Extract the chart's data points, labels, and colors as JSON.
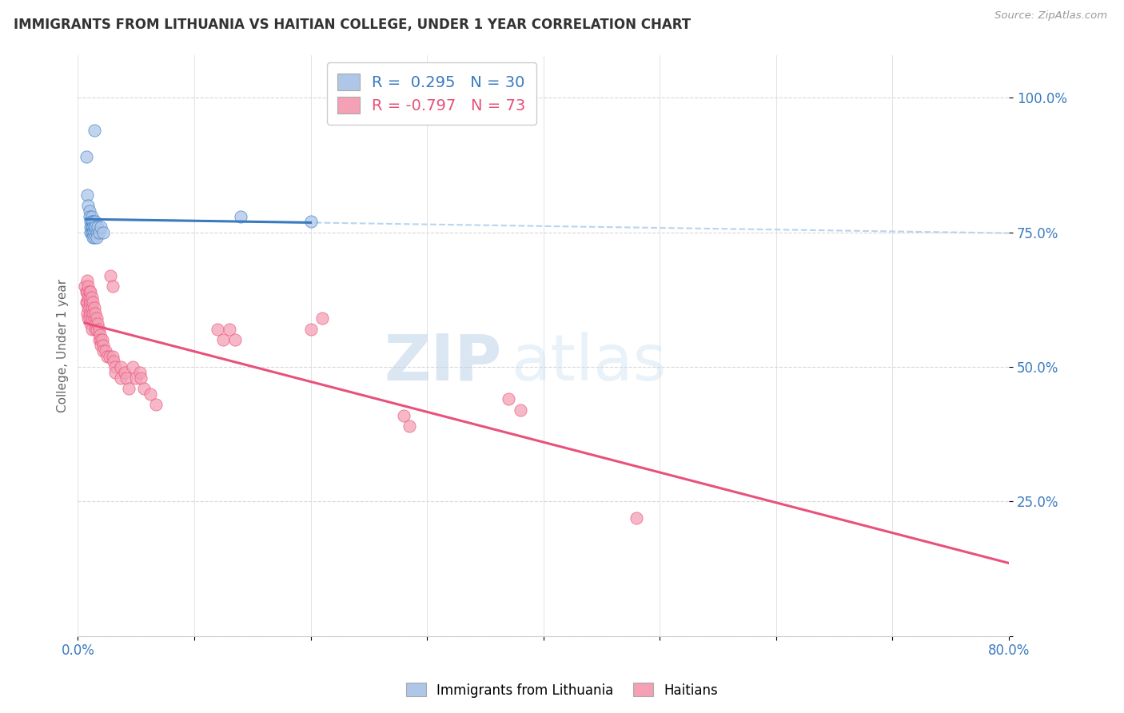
{
  "title": "IMMIGRANTS FROM LITHUANIA VS HAITIAN COLLEGE, UNDER 1 YEAR CORRELATION CHART",
  "source": "Source: ZipAtlas.com",
  "ylabel": "College, Under 1 year",
  "xlim": [
    0.0,
    0.8
  ],
  "ylim": [
    0.0,
    1.08
  ],
  "x_ticks": [
    0.0,
    0.1,
    0.2,
    0.3,
    0.4,
    0.5,
    0.6,
    0.7,
    0.8
  ],
  "x_tick_labels": [
    "0.0%",
    "",
    "",
    "",
    "",
    "",
    "",
    "",
    "80.0%"
  ],
  "y_ticks": [
    0.0,
    0.25,
    0.5,
    0.75,
    1.0
  ],
  "y_tick_labels": [
    "",
    "25.0%",
    "50.0%",
    "75.0%",
    "100.0%"
  ],
  "legend_r1": "R =  0.295   N = 30",
  "legend_r2": "R = -0.797   N = 73",
  "color_lithuania": "#aec6e8",
  "color_haiti": "#f4a0b5",
  "trendline_lithuania_color": "#3a7abf",
  "trendline_haiti_color": "#e8527a",
  "trendline_dashed_color": "#b8d4ee",
  "watermark_zip": "ZIP",
  "watermark_atlas": "atlas",
  "background_color": "#ffffff",
  "grid_color": "#d8d8d8",
  "lithuania_points": [
    [
      0.007,
      0.89
    ],
    [
      0.014,
      0.94
    ],
    [
      0.008,
      0.82
    ],
    [
      0.009,
      0.8
    ],
    [
      0.01,
      0.79
    ],
    [
      0.01,
      0.78
    ],
    [
      0.011,
      0.77
    ],
    [
      0.011,
      0.76
    ],
    [
      0.011,
      0.75
    ],
    [
      0.012,
      0.78
    ],
    [
      0.012,
      0.77
    ],
    [
      0.012,
      0.76
    ],
    [
      0.012,
      0.75
    ],
    [
      0.013,
      0.77
    ],
    [
      0.013,
      0.76
    ],
    [
      0.013,
      0.75
    ],
    [
      0.013,
      0.74
    ],
    [
      0.014,
      0.76
    ],
    [
      0.014,
      0.75
    ],
    [
      0.014,
      0.74
    ],
    [
      0.015,
      0.77
    ],
    [
      0.015,
      0.76
    ],
    [
      0.016,
      0.75
    ],
    [
      0.016,
      0.74
    ],
    [
      0.017,
      0.76
    ],
    [
      0.018,
      0.75
    ],
    [
      0.02,
      0.76
    ],
    [
      0.022,
      0.75
    ],
    [
      0.14,
      0.78
    ],
    [
      0.2,
      0.77
    ]
  ],
  "haiti_points": [
    [
      0.006,
      0.65
    ],
    [
      0.007,
      0.64
    ],
    [
      0.007,
      0.62
    ],
    [
      0.008,
      0.66
    ],
    [
      0.008,
      0.64
    ],
    [
      0.008,
      0.62
    ],
    [
      0.008,
      0.6
    ],
    [
      0.009,
      0.65
    ],
    [
      0.009,
      0.63
    ],
    [
      0.009,
      0.61
    ],
    [
      0.009,
      0.59
    ],
    [
      0.01,
      0.64
    ],
    [
      0.01,
      0.63
    ],
    [
      0.01,
      0.61
    ],
    [
      0.01,
      0.59
    ],
    [
      0.011,
      0.64
    ],
    [
      0.011,
      0.62
    ],
    [
      0.011,
      0.6
    ],
    [
      0.011,
      0.58
    ],
    [
      0.012,
      0.63
    ],
    [
      0.012,
      0.61
    ],
    [
      0.012,
      0.59
    ],
    [
      0.012,
      0.57
    ],
    [
      0.013,
      0.62
    ],
    [
      0.013,
      0.6
    ],
    [
      0.014,
      0.61
    ],
    [
      0.014,
      0.59
    ],
    [
      0.015,
      0.6
    ],
    [
      0.015,
      0.58
    ],
    [
      0.015,
      0.57
    ],
    [
      0.016,
      0.59
    ],
    [
      0.016,
      0.57
    ],
    [
      0.017,
      0.58
    ],
    [
      0.018,
      0.57
    ],
    [
      0.018,
      0.55
    ],
    [
      0.019,
      0.56
    ],
    [
      0.02,
      0.55
    ],
    [
      0.02,
      0.54
    ],
    [
      0.021,
      0.55
    ],
    [
      0.022,
      0.54
    ],
    [
      0.022,
      0.53
    ],
    [
      0.024,
      0.53
    ],
    [
      0.025,
      0.52
    ],
    [
      0.027,
      0.52
    ],
    [
      0.028,
      0.67
    ],
    [
      0.03,
      0.65
    ],
    [
      0.03,
      0.52
    ],
    [
      0.031,
      0.51
    ],
    [
      0.032,
      0.5
    ],
    [
      0.032,
      0.49
    ],
    [
      0.037,
      0.5
    ],
    [
      0.037,
      0.48
    ],
    [
      0.04,
      0.49
    ],
    [
      0.042,
      0.48
    ],
    [
      0.044,
      0.46
    ],
    [
      0.047,
      0.5
    ],
    [
      0.05,
      0.48
    ],
    [
      0.053,
      0.49
    ],
    [
      0.054,
      0.48
    ],
    [
      0.057,
      0.46
    ],
    [
      0.062,
      0.45
    ],
    [
      0.067,
      0.43
    ],
    [
      0.12,
      0.57
    ],
    [
      0.125,
      0.55
    ],
    [
      0.13,
      0.57
    ],
    [
      0.135,
      0.55
    ],
    [
      0.2,
      0.57
    ],
    [
      0.21,
      0.59
    ],
    [
      0.28,
      0.41
    ],
    [
      0.285,
      0.39
    ],
    [
      0.37,
      0.44
    ],
    [
      0.38,
      0.42
    ],
    [
      0.48,
      0.22
    ]
  ]
}
